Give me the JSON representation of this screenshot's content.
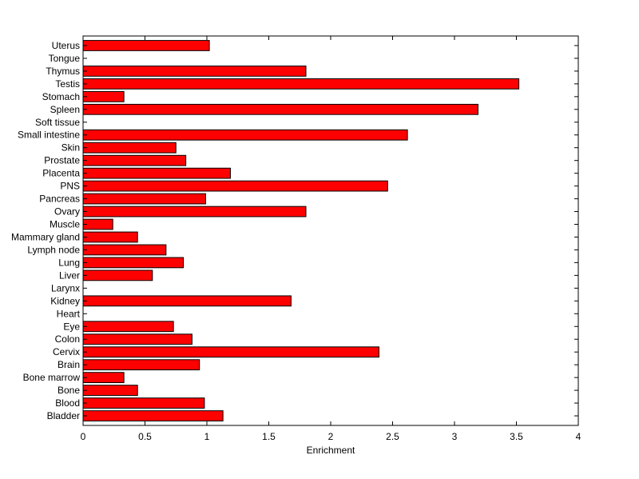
{
  "chart_data": {
    "type": "bar",
    "orientation": "horizontal",
    "categories": [
      "Bladder",
      "Blood",
      "Bone",
      "Bone marrow",
      "Brain",
      "Cervix",
      "Colon",
      "Eye",
      "Heart",
      "Kidney",
      "Larynx",
      "Liver",
      "Lung",
      "Lymph node",
      "Mammary gland",
      "Muscle",
      "Ovary",
      "Pancreas",
      "PNS",
      "Placenta",
      "Prostate",
      "Skin",
      "Small intestine",
      "Soft tissue",
      "Spleen",
      "Stomach",
      "Testis",
      "Thymus",
      "Tongue",
      "Uterus"
    ],
    "values": [
      1.13,
      0.98,
      0.44,
      0.33,
      0.94,
      2.39,
      0.88,
      0.73,
      0,
      1.68,
      0,
      0.56,
      0.81,
      0.67,
      0.44,
      0.24,
      1.8,
      0.99,
      2.46,
      1.19,
      0.83,
      0.75,
      2.62,
      0,
      3.19,
      0.33,
      3.52,
      1.8,
      0,
      1.02
    ],
    "xlabel": "Enrichment",
    "ylabel": "",
    "title": "",
    "xlim": [
      0,
      4
    ],
    "xticks": [
      "0",
      "0.5",
      "1",
      "1.5",
      "2",
      "2.5",
      "3",
      "3.5",
      "4"
    ],
    "grid": false,
    "colors": {
      "bar_fill": "#ff0000",
      "bar_stroke": "#000000",
      "axes": "#000000"
    }
  }
}
